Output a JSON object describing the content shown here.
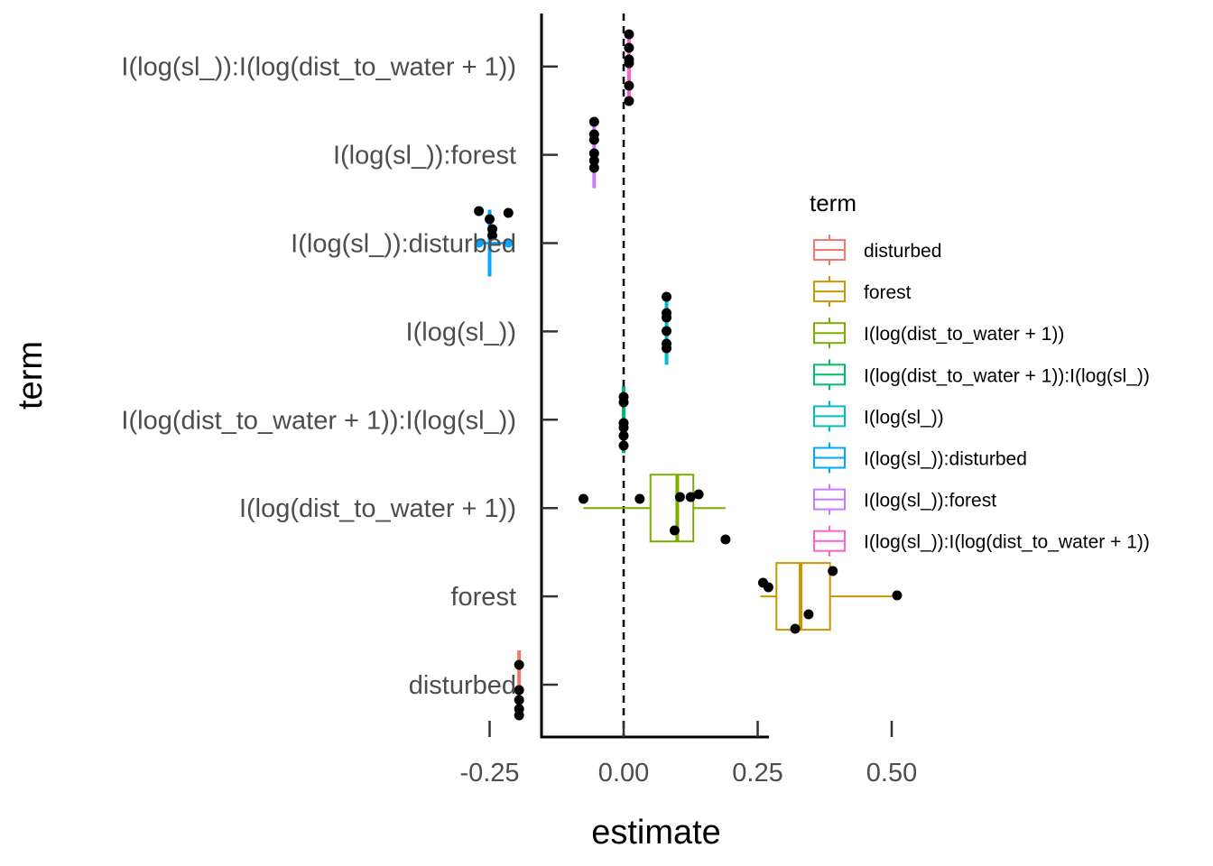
{
  "chart_data": {
    "type": "boxplot",
    "xlabel": "estimate",
    "ylabel": "term",
    "xlim": [
      -0.31,
      0.54
    ],
    "x_ticks": [
      -0.25,
      0.0,
      0.25,
      0.5
    ],
    "x_tick_labels": [
      "-0.25",
      "0.00",
      "0.25",
      "0.50"
    ],
    "reference_line": {
      "x": 0,
      "style": "dashed"
    },
    "grid": false,
    "legend": {
      "title": "term",
      "position": "right",
      "entries": [
        "disturbed",
        "forest",
        "I(log(dist_to_water + 1))",
        "I(log(dist_to_water + 1)):I(log(sl_))",
        "I(log(sl_))",
        "I(log(sl_)):disturbed",
        "I(log(sl_)):forest",
        "I(log(sl_)):I(log(dist_to_water + 1))"
      ]
    },
    "categories": [
      "disturbed",
      "forest",
      "I(log(dist_to_water + 1))",
      "I(log(dist_to_water + 1)):I(log(sl_))",
      "I(log(sl_))",
      "I(log(sl_)):disturbed",
      "I(log(sl_)):forest",
      "I(log(sl_)):I(log(dist_to_water + 1))"
    ],
    "series": [
      {
        "name": "disturbed",
        "color": "#F8766D",
        "box": {
          "min": -0.195,
          "q1": -0.195,
          "median": -0.195,
          "q3": -0.195,
          "max": -0.195,
          "ymin": 721,
          "ymax": 797
        },
        "outliers": [],
        "points": [
          [
            -0.195,
            737
          ],
          [
            -0.195,
            765
          ],
          [
            -0.195,
            776
          ],
          [
            -0.195,
            786
          ],
          [
            -0.195,
            793
          ]
        ]
      },
      {
        "name": "forest",
        "color": "#CD9600",
        "box": {
          "min": 0.255,
          "q1": 0.285,
          "median": 0.33,
          "q3": 0.385,
          "max": 0.51
        },
        "outliers": [],
        "points": [
          [
            0.26,
            646
          ],
          [
            0.27,
            651
          ],
          [
            0.39,
            633
          ],
          [
            0.51,
            660
          ],
          [
            0.345,
            681
          ],
          [
            0.32,
            697
          ]
        ]
      },
      {
        "name": "I(log(dist_to_water + 1))",
        "color": "#7CAE00",
        "box": {
          "min": -0.075,
          "q1": 0.05,
          "median": 0.1,
          "q3": 0.13,
          "max": 0.19
        },
        "outliers": [],
        "points": [
          [
            -0.075,
            553
          ],
          [
            0.03,
            553
          ],
          [
            0.105,
            551
          ],
          [
            0.125,
            551
          ],
          [
            0.14,
            548
          ],
          [
            0.095,
            588
          ],
          [
            0.19,
            598
          ]
        ]
      },
      {
        "name": "I(log(dist_to_water + 1)):I(log(sl_))",
        "color": "#00BE67",
        "box": {
          "min": 0.0,
          "q1": 0.0,
          "median": 0.0,
          "q3": 0.0,
          "max": 0.0
        },
        "outliers": [],
        "points": [
          [
            0.0,
            440
          ],
          [
            0.0,
            446
          ],
          [
            0.0,
            469
          ],
          [
            0.0,
            474
          ],
          [
            0.0,
            483
          ],
          [
            0.0,
            494
          ]
        ]
      },
      {
        "name": "I(log(sl_))",
        "color": "#00BFC4",
        "box": {
          "min": 0.08,
          "q1": 0.08,
          "median": 0.08,
          "q3": 0.08,
          "max": 0.08
        },
        "outliers": [],
        "points": [
          [
            0.08,
            329
          ],
          [
            0.08,
            347
          ],
          [
            0.08,
            352
          ],
          [
            0.08,
            367
          ],
          [
            0.08,
            381
          ],
          [
            0.08,
            386
          ]
        ]
      },
      {
        "name": "I(log(sl_)):disturbed",
        "color": "#00A9FF",
        "box": {
          "min": -0.25,
          "q1": -0.25,
          "median": -0.25,
          "q3": -0.25,
          "max": -0.25
        },
        "outliers": [
          -0.27,
          -0.215
        ],
        "points": [
          [
            -0.27,
            234
          ],
          [
            -0.215,
            236
          ],
          [
            -0.25,
            243
          ],
          [
            -0.245,
            254
          ],
          [
            -0.245,
            261
          ]
        ]
      },
      {
        "name": "I(log(sl_)):forest",
        "color": "#C77CFF",
        "box": {
          "min": -0.055,
          "q1": -0.055,
          "median": -0.055,
          "q3": -0.055,
          "max": -0.055
        },
        "outliers": [],
        "points": [
          [
            -0.055,
            135
          ],
          [
            -0.055,
            149
          ],
          [
            -0.055,
            155
          ],
          [
            -0.055,
            170
          ],
          [
            -0.055,
            178
          ],
          [
            -0.055,
            186
          ]
        ]
      },
      {
        "name": "I(log(sl_)):I(log(dist_to_water + 1))",
        "color": "#FF61CC",
        "box": {
          "min": 0.01,
          "q1": 0.01,
          "median": 0.01,
          "q3": 0.01,
          "max": 0.01
        },
        "outliers": [],
        "points": [
          [
            0.01,
            38
          ],
          [
            0.01,
            53
          ],
          [
            0.01,
            66
          ],
          [
            0.01,
            70
          ],
          [
            0.01,
            95
          ],
          [
            0.01,
            112
          ]
        ]
      }
    ]
  }
}
